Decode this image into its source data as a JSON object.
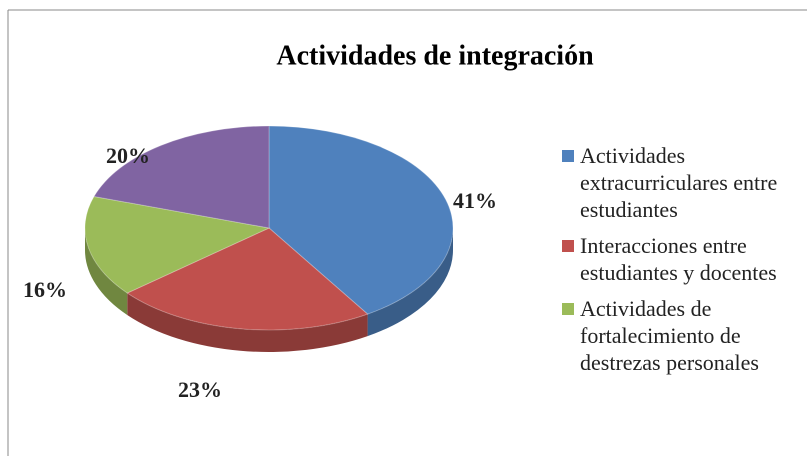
{
  "chart_data": {
    "type": "pie",
    "title": "Actividades de integración",
    "categories": [
      "Actividades extracurriculares entre estudiantes",
      "Interacciones entre estudiantes y docentes",
      "Actividades de fortalecimiento de destrezas personales",
      null
    ],
    "values": [
      41,
      23,
      16,
      20
    ],
    "value_labels": [
      "41%",
      "23%",
      "16%",
      "20%"
    ],
    "colors": [
      "#4f81bd",
      "#c0504d",
      "#9bbb59",
      "#8064a2"
    ],
    "legend": "right"
  }
}
